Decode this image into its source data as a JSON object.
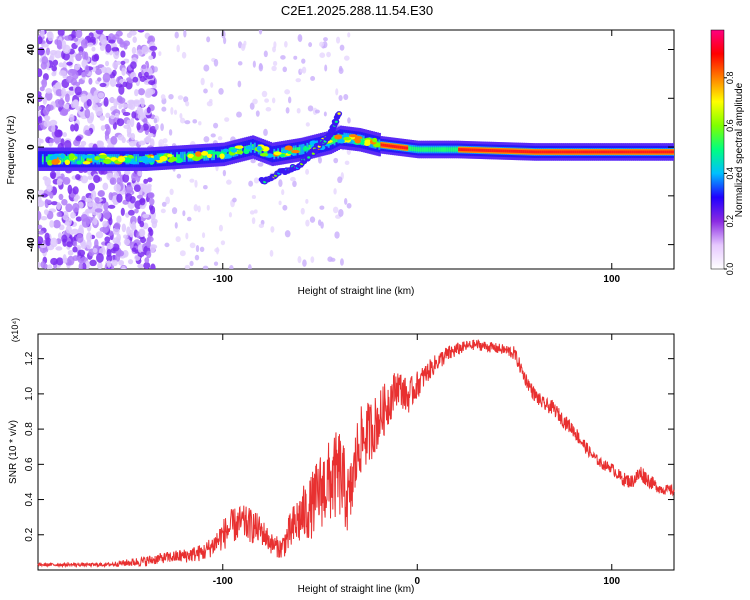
{
  "title": "C2E1.2025.288.11.54.E30",
  "chart_data": [
    {
      "type": "heatmap",
      "title": "C2E1.2025.288.11.54.E30",
      "xlabel": "Height of straight line (km)",
      "ylabel": "Frequency (Hz)",
      "xlim": [
        -195,
        132
      ],
      "ylim": [
        -50,
        48
      ],
      "x_ticks": [
        -100,
        100
      ],
      "x_tick_labels": [
        "-100",
        "100"
      ],
      "y_ticks": [
        40,
        20,
        0,
        -20,
        -40
      ],
      "y_tick_labels": [
        "40",
        "20",
        "0",
        "-20",
        "-40"
      ],
      "colorbar": {
        "label": "Normalized spectral amplitude",
        "range": [
          0,
          1
        ],
        "ticks": [
          0.0,
          0.2,
          0.4,
          0.6,
          0.8
        ],
        "tick_labels": [
          "0.0",
          "0.2",
          "0.4",
          "0.6",
          "0.8"
        ],
        "colormap": [
          "#ffffff",
          "#e6c8ff",
          "#8a2be2",
          "#2000ff",
          "#00bfff",
          "#00ff80",
          "#80ff00",
          "#ffff00",
          "#ff8000",
          "#ff0000",
          "#ff0080"
        ]
      },
      "ridge": [
        {
          "x": -195,
          "y": -5
        },
        {
          "x": -160,
          "y": -5
        },
        {
          "x": -140,
          "y": -5
        },
        {
          "x": -120,
          "y": -4
        },
        {
          "x": -100,
          "y": -3
        },
        {
          "x": -85,
          "y": 0
        },
        {
          "x": -75,
          "y": -3
        },
        {
          "x": -60,
          "y": -1
        },
        {
          "x": -45,
          "y": 2
        },
        {
          "x": -40,
          "y": 4
        },
        {
          "x": -30,
          "y": 3
        },
        {
          "x": -20,
          "y": 1
        },
        {
          "x": -10,
          "y": 0
        },
        {
          "x": 0,
          "y": -1
        },
        {
          "x": 20,
          "y": -1
        },
        {
          "x": 60,
          "y": -2
        },
        {
          "x": 100,
          "y": -2
        },
        {
          "x": 132,
          "y": -2
        }
      ],
      "branches": [
        {
          "points": [
            {
              "x": -80,
              "y": -14
            },
            {
              "x": -60,
              "y": -7
            },
            {
              "x": -45,
              "y": 5
            },
            {
              "x": -40,
              "y": 14
            }
          ]
        }
      ]
    },
    {
      "type": "line",
      "xlabel": "Height of straight line (km)",
      "ylabel": "SNR (10 * v/v)",
      "scale_label": "(x10⁴)",
      "xlim": [
        -195,
        132
      ],
      "ylim": [
        0,
        1.34
      ],
      "x_ticks": [
        -100,
        0,
        100
      ],
      "x_tick_labels": [
        "-100",
        "0",
        "100"
      ],
      "y_ticks": [
        0.2,
        0.4,
        0.6,
        0.8,
        1.0,
        1.2
      ],
      "y_tick_labels": [
        "0.2",
        "0.4",
        "0.6",
        "0.8",
        "1.0",
        "1.2"
      ],
      "color": "#e83030",
      "series": [
        {
          "name": "SNR",
          "x": [
            -195,
            -180,
            -160,
            -150,
            -140,
            -130,
            -120,
            -110,
            -105,
            -100,
            -95,
            -90,
            -85,
            -80,
            -75,
            -70,
            -65,
            -60,
            -55,
            -50,
            -45,
            -40,
            -35,
            -30,
            -25,
            -20,
            -15,
            -10,
            -5,
            0,
            5,
            10,
            15,
            20,
            25,
            30,
            35,
            40,
            45,
            50,
            55,
            60,
            65,
            70,
            75,
            80,
            85,
            90,
            95,
            100,
            105,
            110,
            115,
            120,
            125,
            132
          ],
          "values": [
            0.03,
            0.03,
            0.03,
            0.04,
            0.05,
            0.07,
            0.08,
            0.1,
            0.14,
            0.2,
            0.25,
            0.27,
            0.25,
            0.22,
            0.15,
            0.12,
            0.22,
            0.3,
            0.35,
            0.45,
            0.5,
            0.55,
            0.38,
            0.72,
            0.78,
            0.85,
            0.95,
            1.05,
            0.98,
            1.05,
            1.12,
            1.18,
            1.22,
            1.25,
            1.27,
            1.28,
            1.27,
            1.26,
            1.25,
            1.23,
            1.1,
            1.0,
            0.94,
            0.92,
            0.85,
            0.8,
            0.72,
            0.65,
            0.6,
            0.58,
            0.52,
            0.5,
            0.55,
            0.5,
            0.46,
            0.45
          ],
          "noise_amplitude": [
            0.01,
            0.01,
            0.01,
            0.02,
            0.03,
            0.03,
            0.04,
            0.05,
            0.06,
            0.09,
            0.1,
            0.1,
            0.1,
            0.08,
            0.06,
            0.06,
            0.12,
            0.16,
            0.18,
            0.22,
            0.24,
            0.26,
            0.2,
            0.2,
            0.18,
            0.16,
            0.14,
            0.1,
            0.1,
            0.08,
            0.06,
            0.05,
            0.05,
            0.04,
            0.03,
            0.03,
            0.03,
            0.03,
            0.03,
            0.04,
            0.04,
            0.04,
            0.04,
            0.04,
            0.04,
            0.04,
            0.04,
            0.03,
            0.03,
            0.03,
            0.04,
            0.04,
            0.05,
            0.04,
            0.03,
            0.03
          ]
        }
      ]
    }
  ]
}
